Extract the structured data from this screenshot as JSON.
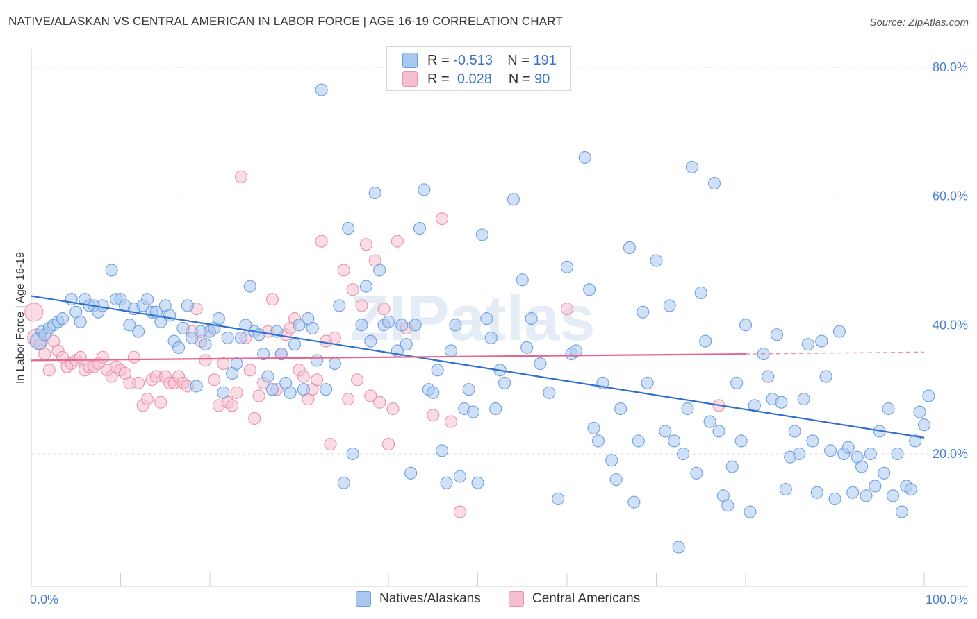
{
  "title": "NATIVE/ALASKAN VS CENTRAL AMERICAN IN LABOR FORCE | AGE 16-19 CORRELATION CHART",
  "source": "Source: ZipAtlas.com",
  "watermark": "ZIPatlas",
  "legend": {
    "r_label": "R =",
    "n_label": "N =",
    "natives": {
      "r": "-0.513",
      "n": "191"
    },
    "central": {
      "r": "0.028",
      "n": "90"
    }
  },
  "colors": {
    "natives_fill": "#a9c8f0",
    "natives_stroke": "#6c9fdf",
    "natives_line": "#2f6fcf",
    "central_fill": "#f6bfd0",
    "central_stroke": "#ec8fab",
    "central_line": "#e8648c",
    "grid": "#dcdcdc",
    "tick_text": "#4a7fcf"
  },
  "chart_data": {
    "type": "scatter",
    "ylabel": "In Labor Force | Age 16-19",
    "x_tick_labels": [
      "0.0%",
      "100.0%"
    ],
    "y_tick_labels": [
      "20.0%",
      "40.0%",
      "60.0%",
      "80.0%"
    ],
    "xlim": [
      0,
      100
    ],
    "ylim": [
      0,
      82
    ],
    "grid": "horizontal dashed",
    "legend_position": "top-center",
    "series": [
      {
        "name": "Natives/Alaskans",
        "trend": {
          "x": [
            0,
            100
          ],
          "y": [
            44.5,
            22.5
          ],
          "style": "solid"
        },
        "points": [
          [
            0.8,
            37.5
          ],
          [
            1.2,
            39
          ],
          [
            1.5,
            38.5
          ],
          [
            2,
            39.5
          ],
          [
            2.5,
            40
          ],
          [
            3,
            40.5
          ],
          [
            3.5,
            41
          ],
          [
            4.5,
            44
          ],
          [
            5,
            42
          ],
          [
            5.5,
            40.5
          ],
          [
            6,
            44
          ],
          [
            6.5,
            43
          ],
          [
            7,
            43
          ],
          [
            7.5,
            42
          ],
          [
            8,
            43
          ],
          [
            9,
            48.5
          ],
          [
            9.5,
            44
          ],
          [
            10,
            44
          ],
          [
            10.5,
            43
          ],
          [
            11,
            40
          ],
          [
            11.5,
            42.5
          ],
          [
            12,
            39
          ],
          [
            12.5,
            43
          ],
          [
            13,
            44
          ],
          [
            13.5,
            42
          ],
          [
            14,
            42
          ],
          [
            14.5,
            40.5
          ],
          [
            15,
            43
          ],
          [
            15.5,
            41.5
          ],
          [
            16,
            37.5
          ],
          [
            16.5,
            36.5
          ],
          [
            17,
            39.5
          ],
          [
            17.5,
            43
          ],
          [
            18,
            38
          ],
          [
            18.5,
            30.5
          ],
          [
            19,
            39
          ],
          [
            19.5,
            37
          ],
          [
            20,
            39
          ],
          [
            20.5,
            39.5
          ],
          [
            21,
            41
          ],
          [
            21.5,
            29.5
          ],
          [
            22,
            38
          ],
          [
            22.5,
            32.5
          ],
          [
            23,
            34
          ],
          [
            23.5,
            38
          ],
          [
            24,
            40
          ],
          [
            24.5,
            46
          ],
          [
            25,
            39
          ],
          [
            25.5,
            38.5
          ],
          [
            26,
            35.5
          ],
          [
            26.5,
            32
          ],
          [
            27,
            30
          ],
          [
            27.5,
            39
          ],
          [
            28,
            35.5
          ],
          [
            28.5,
            31
          ],
          [
            29,
            29.5
          ],
          [
            29.5,
            37
          ],
          [
            30,
            40
          ],
          [
            30.5,
            30
          ],
          [
            31,
            41
          ],
          [
            31.5,
            39.5
          ],
          [
            32,
            34.5
          ],
          [
            32.5,
            76.5
          ],
          [
            33,
            30
          ],
          [
            34,
            34
          ],
          [
            34.5,
            43
          ],
          [
            35,
            15.5
          ],
          [
            35.5,
            55
          ],
          [
            36,
            20
          ],
          [
            37,
            40
          ],
          [
            37.5,
            46
          ],
          [
            38,
            37.5
          ],
          [
            38.5,
            60.5
          ],
          [
            39,
            48.5
          ],
          [
            39.5,
            40
          ],
          [
            40,
            40.5
          ],
          [
            41,
            36
          ],
          [
            41.5,
            40
          ],
          [
            42,
            37
          ],
          [
            42.5,
            17
          ],
          [
            43,
            40
          ],
          [
            43.5,
            55
          ],
          [
            44,
            61
          ],
          [
            44.5,
            30
          ],
          [
            45,
            29.5
          ],
          [
            45.5,
            33
          ],
          [
            46,
            20.5
          ],
          [
            46.5,
            15.5
          ],
          [
            47,
            36
          ],
          [
            47.5,
            40
          ],
          [
            48,
            16.5
          ],
          [
            48.5,
            27
          ],
          [
            49,
            30
          ],
          [
            49.5,
            26.5
          ],
          [
            50,
            15.5
          ],
          [
            50.5,
            54
          ],
          [
            51,
            41
          ],
          [
            51.5,
            38
          ],
          [
            52,
            27
          ],
          [
            52.5,
            33
          ],
          [
            53,
            31
          ],
          [
            54,
            59.5
          ],
          [
            55,
            47
          ],
          [
            55.5,
            36.5
          ],
          [
            56,
            41
          ],
          [
            57,
            34
          ],
          [
            58,
            29.5
          ],
          [
            59,
            13
          ],
          [
            60,
            49
          ],
          [
            60.5,
            35.5
          ],
          [
            61,
            36
          ],
          [
            62,
            66
          ],
          [
            62.5,
            45.5
          ],
          [
            63,
            24
          ],
          [
            63.5,
            22
          ],
          [
            64,
            31
          ],
          [
            65,
            19
          ],
          [
            65.5,
            16
          ],
          [
            66,
            27
          ],
          [
            67,
            52
          ],
          [
            67.5,
            12.5
          ],
          [
            68,
            22
          ],
          [
            68.5,
            42
          ],
          [
            69,
            31
          ],
          [
            70,
            50
          ],
          [
            71,
            23.5
          ],
          [
            71.5,
            43
          ],
          [
            72,
            22
          ],
          [
            72.5,
            5.5
          ],
          [
            73,
            20
          ],
          [
            73.5,
            27
          ],
          [
            74,
            64.5
          ],
          [
            74.5,
            17
          ],
          [
            75,
            45
          ],
          [
            75.5,
            37.5
          ],
          [
            76,
            25
          ],
          [
            76.5,
            62
          ],
          [
            77,
            23.5
          ],
          [
            77.5,
            13.5
          ],
          [
            78,
            12
          ],
          [
            78.5,
            18
          ],
          [
            79,
            31
          ],
          [
            79.5,
            22
          ],
          [
            80,
            40
          ],
          [
            80.5,
            11
          ],
          [
            81,
            27.5
          ],
          [
            82,
            35.5
          ],
          [
            82.5,
            32
          ],
          [
            83,
            28.5
          ],
          [
            83.5,
            38.5
          ],
          [
            84,
            28
          ],
          [
            84.5,
            14.5
          ],
          [
            85,
            19.5
          ],
          [
            85.5,
            23.5
          ],
          [
            86,
            20
          ],
          [
            86.5,
            28.5
          ],
          [
            87,
            37
          ],
          [
            87.5,
            22
          ],
          [
            88,
            14
          ],
          [
            88.5,
            37.5
          ],
          [
            89,
            32
          ],
          [
            89.5,
            20.5
          ],
          [
            90,
            13
          ],
          [
            90.5,
            39
          ],
          [
            91,
            20
          ],
          [
            91.5,
            21
          ],
          [
            92,
            14
          ],
          [
            92.5,
            19.5
          ],
          [
            93,
            18
          ],
          [
            93.5,
            13.5
          ],
          [
            94,
            20
          ],
          [
            94.5,
            15
          ],
          [
            95,
            23.5
          ],
          [
            95.5,
            17
          ],
          [
            96,
            27
          ],
          [
            96.5,
            13.5
          ],
          [
            97,
            20
          ],
          [
            97.5,
            11
          ],
          [
            98,
            15
          ],
          [
            98.5,
            14.5
          ],
          [
            99,
            22
          ],
          [
            99.5,
            26.5
          ],
          [
            100,
            24.5
          ],
          [
            100.5,
            29
          ]
        ]
      },
      {
        "name": "Central Americans",
        "trend": {
          "x": [
            0,
            80
          ],
          "y": [
            34.5,
            35.5
          ],
          "style": "solid",
          "dashed_to": 100,
          "dashed_y": 35.8
        },
        "points": [
          [
            0.3,
            42
          ],
          [
            0.6,
            38
          ],
          [
            1,
            37
          ],
          [
            1.5,
            35.5
          ],
          [
            2,
            33
          ],
          [
            2.5,
            37.5
          ],
          [
            3,
            36
          ],
          [
            3.5,
            35
          ],
          [
            4,
            33.5
          ],
          [
            4.5,
            34
          ],
          [
            5,
            34.5
          ],
          [
            5.5,
            35
          ],
          [
            6,
            33
          ],
          [
            6.5,
            33.5
          ],
          [
            7,
            33.5
          ],
          [
            7.5,
            34
          ],
          [
            8,
            35
          ],
          [
            8.5,
            33
          ],
          [
            9,
            32
          ],
          [
            9.5,
            33.5
          ],
          [
            10,
            33
          ],
          [
            10.5,
            32.5
          ],
          [
            11,
            31
          ],
          [
            11.5,
            35
          ],
          [
            12,
            31
          ],
          [
            12.5,
            27.5
          ],
          [
            13,
            28.5
          ],
          [
            13.5,
            31.5
          ],
          [
            14,
            32
          ],
          [
            14.5,
            28
          ],
          [
            15,
            32
          ],
          [
            15.5,
            31
          ],
          [
            16,
            31
          ],
          [
            16.5,
            32
          ],
          [
            17,
            31
          ],
          [
            17.5,
            30.5
          ],
          [
            18,
            39
          ],
          [
            18.5,
            42.5
          ],
          [
            19,
            37.5
          ],
          [
            19.5,
            34.5
          ],
          [
            20,
            39
          ],
          [
            20.5,
            31.5
          ],
          [
            21,
            27.5
          ],
          [
            21.5,
            34
          ],
          [
            22,
            28
          ],
          [
            22.5,
            27.5
          ],
          [
            23,
            29.5
          ],
          [
            23.5,
            63
          ],
          [
            24,
            38
          ],
          [
            24.5,
            33
          ],
          [
            25,
            25.5
          ],
          [
            25.5,
            29
          ],
          [
            26,
            31
          ],
          [
            26.5,
            39
          ],
          [
            27,
            44
          ],
          [
            27.5,
            30
          ],
          [
            28,
            35.5
          ],
          [
            28.5,
            38.5
          ],
          [
            29,
            39.5
          ],
          [
            29.5,
            41
          ],
          [
            30,
            33
          ],
          [
            30.5,
            32
          ],
          [
            31,
            28.5
          ],
          [
            31.5,
            30
          ],
          [
            32,
            31.5
          ],
          [
            32.5,
            53
          ],
          [
            33,
            37.5
          ],
          [
            33.5,
            21.5
          ],
          [
            34,
            38
          ],
          [
            35,
            48.5
          ],
          [
            35.5,
            28.5
          ],
          [
            36,
            45.5
          ],
          [
            36.5,
            31.5
          ],
          [
            37,
            43
          ],
          [
            37.5,
            52.5
          ],
          [
            38,
            29
          ],
          [
            38.5,
            50
          ],
          [
            39,
            28
          ],
          [
            39.5,
            42.5
          ],
          [
            40,
            21.5
          ],
          [
            40.5,
            27
          ],
          [
            41,
            53
          ],
          [
            42,
            39.5
          ],
          [
            45,
            26
          ],
          [
            46,
            56.5
          ],
          [
            47,
            25
          ],
          [
            48,
            11
          ],
          [
            60,
            42.5
          ],
          [
            77,
            27.5
          ]
        ]
      }
    ]
  }
}
